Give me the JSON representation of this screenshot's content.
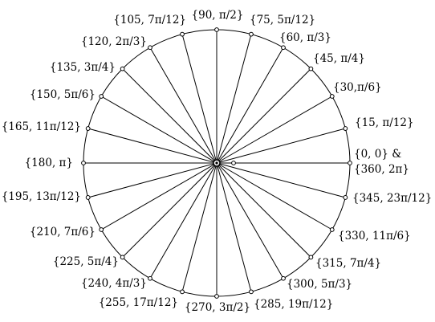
{
  "colors": {
    "background": "#ffffff",
    "stroke": "#000000"
  },
  "points": [
    {
      "deg": 0,
      "rad": "0",
      "labels": [
        "{0, 0} &",
        "{360, 2π}"
      ]
    },
    {
      "deg": 15,
      "rad": "π/12",
      "labels": [
        "{15, π/12}"
      ]
    },
    {
      "deg": 30,
      "rad": "π/6",
      "labels": [
        "{30,π/6}"
      ]
    },
    {
      "deg": 45,
      "rad": "π/4",
      "labels": [
        "{45, π/4}"
      ]
    },
    {
      "deg": 60,
      "rad": "π/3",
      "labels": [
        "{60, π/3}"
      ]
    },
    {
      "deg": 75,
      "rad": "5π/12",
      "labels": [
        "{75, 5π/12}"
      ]
    },
    {
      "deg": 90,
      "rad": "π/2",
      "labels": [
        "{90, π/2}"
      ]
    },
    {
      "deg": 105,
      "rad": "7π/12",
      "labels": [
        "{105, 7π/12}"
      ]
    },
    {
      "deg": 120,
      "rad": "2π/3",
      "labels": [
        "{120, 2π/3}"
      ]
    },
    {
      "deg": 135,
      "rad": "3π/4",
      "labels": [
        "{135, 3π/4}"
      ]
    },
    {
      "deg": 150,
      "rad": "5π/6",
      "labels": [
        "{150, 5π/6}"
      ]
    },
    {
      "deg": 165,
      "rad": "11π/12",
      "labels": [
        "{165, 11π/12}"
      ]
    },
    {
      "deg": 180,
      "rad": "π",
      "labels": [
        "{180, π}"
      ]
    },
    {
      "deg": 195,
      "rad": "13π/12",
      "labels": [
        "{195, 13π/12}"
      ]
    },
    {
      "deg": 210,
      "rad": "7π/6",
      "labels": [
        "{210, 7π/6}"
      ]
    },
    {
      "deg": 225,
      "rad": "5π/4",
      "labels": [
        "{225, 5π/4}"
      ]
    },
    {
      "deg": 240,
      "rad": "4π/3",
      "labels": [
        "{240, 4π/3}"
      ]
    },
    {
      "deg": 255,
      "rad": "17π/12",
      "labels": [
        "{255, 17π/12}"
      ]
    },
    {
      "deg": 270,
      "rad": "3π/2",
      "labels": [
        "{270, 3π/2}"
      ]
    },
    {
      "deg": 285,
      "rad": "19π/12",
      "labels": [
        "{285, 19π/12}"
      ]
    },
    {
      "deg": 300,
      "rad": "5π/3",
      "labels": [
        "{300, 5π/3}"
      ]
    },
    {
      "deg": 315,
      "rad": "7π/4",
      "labels": [
        "{315, 7π/4}"
      ]
    },
    {
      "deg": 330,
      "rad": "11π/6",
      "labels": [
        "{330, 11π/6}"
      ]
    },
    {
      "deg": 345,
      "rad": "23π/12",
      "labels": [
        "{345, 23π/12}"
      ]
    }
  ]
}
